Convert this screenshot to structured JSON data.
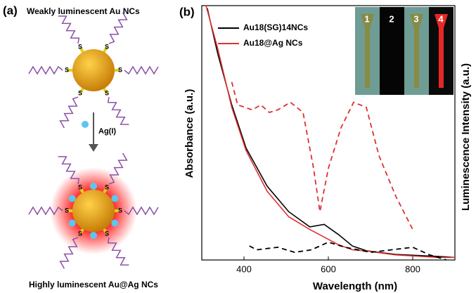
{
  "panel_a": {
    "label": "(a)",
    "title": "Weakly luminescent Au NCs",
    "step_label": "Ag(I)",
    "bottom_label": "Highly luminescent Au@Ag NCs",
    "ligand_atom": "S"
  },
  "chart_data": {
    "type": "line",
    "label": "(b)",
    "xlabel": "Wavelength (nm)",
    "ylabel": "Absorbance (a.u.)",
    "y2label": "Luminescence Intensity (a.u.)",
    "xlim": [
      300,
      900
    ],
    "xticks": [
      400,
      600,
      800
    ],
    "ylim": [
      0,
      1
    ],
    "y2lim": [
      0,
      1
    ],
    "inset_labels": [
      "1",
      "2",
      "3",
      "4"
    ],
    "series": [
      {
        "name": "Au18(SG)14NCs",
        "color": "#000000",
        "legend": true,
        "x": [
          313,
          338,
          371,
          405,
          455,
          506,
          556,
          590,
          624,
          657,
          691,
          758,
          859,
          900
        ],
        "values": [
          0.99,
          0.81,
          0.61,
          0.44,
          0.29,
          0.19,
          0.13,
          0.14,
          0.1,
          0.055,
          0.036,
          0.022,
          0.014,
          0.01
        ]
      },
      {
        "name": "Au18@Ag NCs",
        "color": "#e03030",
        "legend": true,
        "x": [
          310,
          338,
          371,
          405,
          455,
          506,
          556,
          590,
          624,
          657,
          691,
          758,
          859,
          900
        ],
        "values": [
          1.0,
          0.83,
          0.6,
          0.43,
          0.27,
          0.17,
          0.12,
          0.09,
          0.06,
          0.04,
          0.035,
          0.02,
          0.01,
          0.01
        ]
      },
      {
        "color": "#000000",
        "axis": "y2",
        "dash": true,
        "x": [
          413,
          430,
          480,
          520,
          560,
          600,
          640,
          700,
          750,
          800,
          840,
          880
        ],
        "values": [
          0.055,
          0.04,
          0.05,
          0.03,
          0.04,
          0.07,
          0.05,
          0.03,
          0.04,
          0.05,
          0.02,
          0.0
        ]
      },
      {
        "color": "#e03030",
        "axis": "y2",
        "dash": true,
        "x": [
          371,
          385,
          420,
          440,
          460,
          480,
          510,
          540,
          565,
          580,
          600,
          630,
          660,
          690,
          720,
          760,
          800
        ],
        "values": [
          0.7,
          0.61,
          0.59,
          0.61,
          0.58,
          0.59,
          0.62,
          0.58,
          0.36,
          0.19,
          0.36,
          0.52,
          0.62,
          0.6,
          0.41,
          0.25,
          0.12
        ]
      }
    ]
  }
}
